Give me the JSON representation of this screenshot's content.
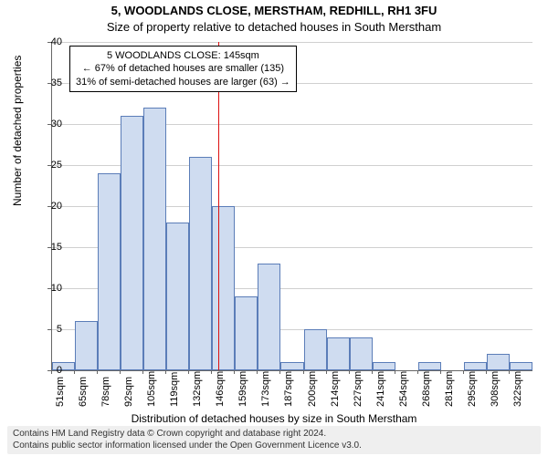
{
  "title_line1": "5, WOODLANDS CLOSE, MERSTHAM, REDHILL, RH1 3FU",
  "title_line2": "Size of property relative to detached houses in South Merstham",
  "ylabel": "Number of detached properties",
  "xlabel": "Distribution of detached houses by size in South Merstham",
  "chart": {
    "type": "histogram",
    "ylim": [
      0,
      40
    ],
    "ytick_step": 5,
    "grid_color": "#d0d0d0",
    "bar_fill": "#cfdcf0",
    "bar_border": "#5b7db8",
    "background": "#ffffff",
    "axis_color": "#666666",
    "xtick_labels": [
      "51sqm",
      "65sqm",
      "78sqm",
      "92sqm",
      "105sqm",
      "119sqm",
      "132sqm",
      "146sqm",
      "159sqm",
      "173sqm",
      "187sqm",
      "200sqm",
      "214sqm",
      "227sqm",
      "241sqm",
      "254sqm",
      "268sqm",
      "281sqm",
      "295sqm",
      "308sqm",
      "322sqm"
    ],
    "values": [
      1,
      6,
      24,
      31,
      32,
      18,
      26,
      20,
      9,
      13,
      1,
      5,
      4,
      4,
      1,
      0,
      1,
      0,
      1,
      2,
      1
    ],
    "marker": {
      "x_at": 145,
      "x_range": [
        51,
        322
      ],
      "color": "#d11"
    },
    "annotation": {
      "line1": "5 WOODLANDS CLOSE: 145sqm",
      "line2": "← 67% of detached houses are smaller (135)",
      "line3": "31% of semi-detached houses are larger (63) →"
    }
  },
  "footer": {
    "line1": "Contains HM Land Registry data © Crown copyright and database right 2024.",
    "line2": "Contains public sector information licensed under the Open Government Licence v3.0."
  }
}
